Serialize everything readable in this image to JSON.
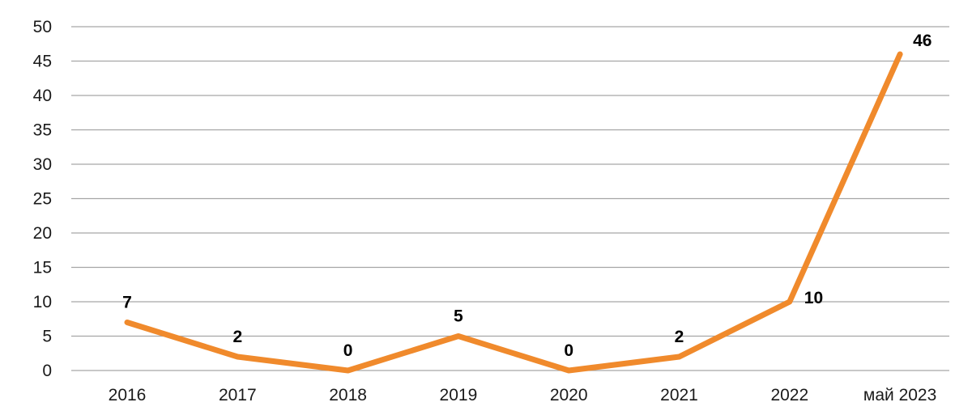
{
  "chart_data": {
    "type": "line",
    "categories": [
      "2016",
      "2017",
      "2018",
      "2019",
      "2020",
      "2021",
      "2022",
      "май 2023"
    ],
    "series": [
      {
        "values": [
          7,
          2,
          0,
          5,
          0,
          2,
          10,
          46
        ],
        "color": "#f08a2c"
      }
    ],
    "data_labels": [
      "7",
      "2",
      "0",
      "5",
      "0",
      "2",
      "10",
      "46"
    ],
    "y_ticks": [
      "0",
      "5",
      "10",
      "15",
      "20",
      "25",
      "30",
      "35",
      "40",
      "45",
      "50"
    ],
    "ylim": [
      0,
      50
    ],
    "grid": true,
    "legend": "none",
    "title": "",
    "xlabel": "",
    "ylabel": ""
  }
}
